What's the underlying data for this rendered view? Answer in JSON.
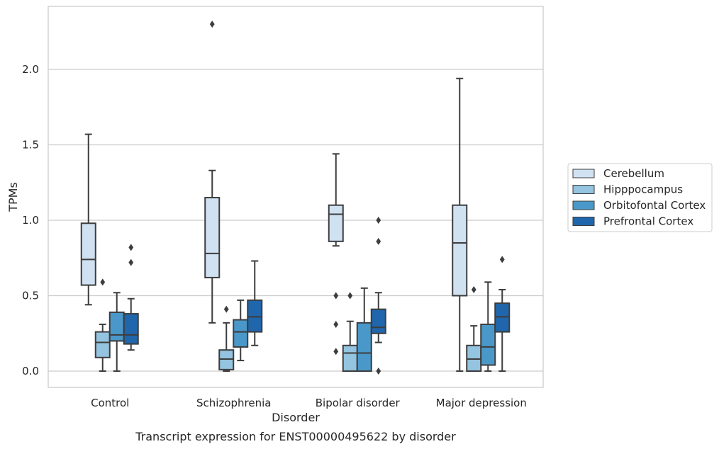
{
  "chart_data": {
    "type": "box",
    "xlabel": "Disorder",
    "ylabel": "TPMs",
    "caption": "Transcript expression for ENST00000495622 by disorder",
    "categories": [
      "Control",
      "Schizophrenia",
      "Bipolar disorder",
      "Major depression"
    ],
    "ylim": [
      -0.11,
      2.43
    ],
    "yticks": [
      0.0,
      0.5,
      1.0,
      1.5,
      2.0
    ],
    "ytick_labels": [
      "0.0",
      "0.5",
      "1.0",
      "1.5",
      "2.0"
    ],
    "grid": "horizontal",
    "legend_placement": "right",
    "series": [
      {
        "name": "Cerebellum",
        "color": "#d0e1f2",
        "boxes": [
          {
            "whislo": 0.44,
            "q1": 0.57,
            "med": 0.74,
            "q3": 0.98,
            "whishi": 1.57,
            "fliers": []
          },
          {
            "whislo": 0.32,
            "q1": 0.62,
            "med": 0.78,
            "q3": 1.15,
            "whishi": 1.33,
            "fliers": [
              2.3
            ]
          },
          {
            "whislo": 0.83,
            "q1": 0.86,
            "med": 1.04,
            "q3": 1.1,
            "whishi": 1.44,
            "fliers": [
              0.5,
              0.31,
              0.13
            ]
          },
          {
            "whislo": 0.0,
            "q1": 0.5,
            "med": 0.85,
            "q3": 1.1,
            "whishi": 1.94,
            "fliers": []
          }
        ]
      },
      {
        "name": "Hipppocampus",
        "color": "#94c4df",
        "boxes": [
          {
            "whislo": 0.0,
            "q1": 0.09,
            "med": 0.19,
            "q3": 0.26,
            "whishi": 0.31,
            "fliers": [
              0.59
            ]
          },
          {
            "whislo": 0.0,
            "q1": 0.01,
            "med": 0.08,
            "q3": 0.14,
            "whishi": 0.32,
            "fliers": [
              0.41
            ]
          },
          {
            "whislo": 0.0,
            "q1": 0.0,
            "med": 0.12,
            "q3": 0.17,
            "whishi": 0.33,
            "fliers": [
              0.5
            ]
          },
          {
            "whislo": 0.0,
            "q1": 0.0,
            "med": 0.08,
            "q3": 0.17,
            "whishi": 0.3,
            "fliers": [
              0.54
            ]
          }
        ]
      },
      {
        "name": "Orbitofontal Cortex",
        "color": "#4a98c9",
        "boxes": [
          {
            "whislo": 0.0,
            "q1": 0.2,
            "med": 0.24,
            "q3": 0.39,
            "whishi": 0.52,
            "fliers": []
          },
          {
            "whislo": 0.07,
            "q1": 0.16,
            "med": 0.26,
            "q3": 0.34,
            "whishi": 0.47,
            "fliers": []
          },
          {
            "whislo": 0.0,
            "q1": 0.0,
            "med": 0.12,
            "q3": 0.32,
            "whishi": 0.55,
            "fliers": []
          },
          {
            "whislo": 0.0,
            "q1": 0.04,
            "med": 0.16,
            "q3": 0.31,
            "whishi": 0.59,
            "fliers": []
          }
        ]
      },
      {
        "name": "Prefrontal Cortex",
        "color": "#2066ac",
        "boxes": [
          {
            "whislo": 0.14,
            "q1": 0.18,
            "med": 0.24,
            "q3": 0.38,
            "whishi": 0.48,
            "fliers": [
              0.82,
              0.72
            ]
          },
          {
            "whislo": 0.17,
            "q1": 0.26,
            "med": 0.36,
            "q3": 0.47,
            "whishi": 0.73,
            "fliers": []
          },
          {
            "whislo": 0.19,
            "q1": 0.25,
            "med": 0.29,
            "q3": 0.41,
            "whishi": 0.52,
            "fliers": [
              1.0,
              0.86,
              0.0
            ]
          },
          {
            "whislo": 0.0,
            "q1": 0.26,
            "med": 0.36,
            "q3": 0.45,
            "whishi": 0.54,
            "fliers": [
              0.74
            ]
          }
        ]
      }
    ]
  }
}
